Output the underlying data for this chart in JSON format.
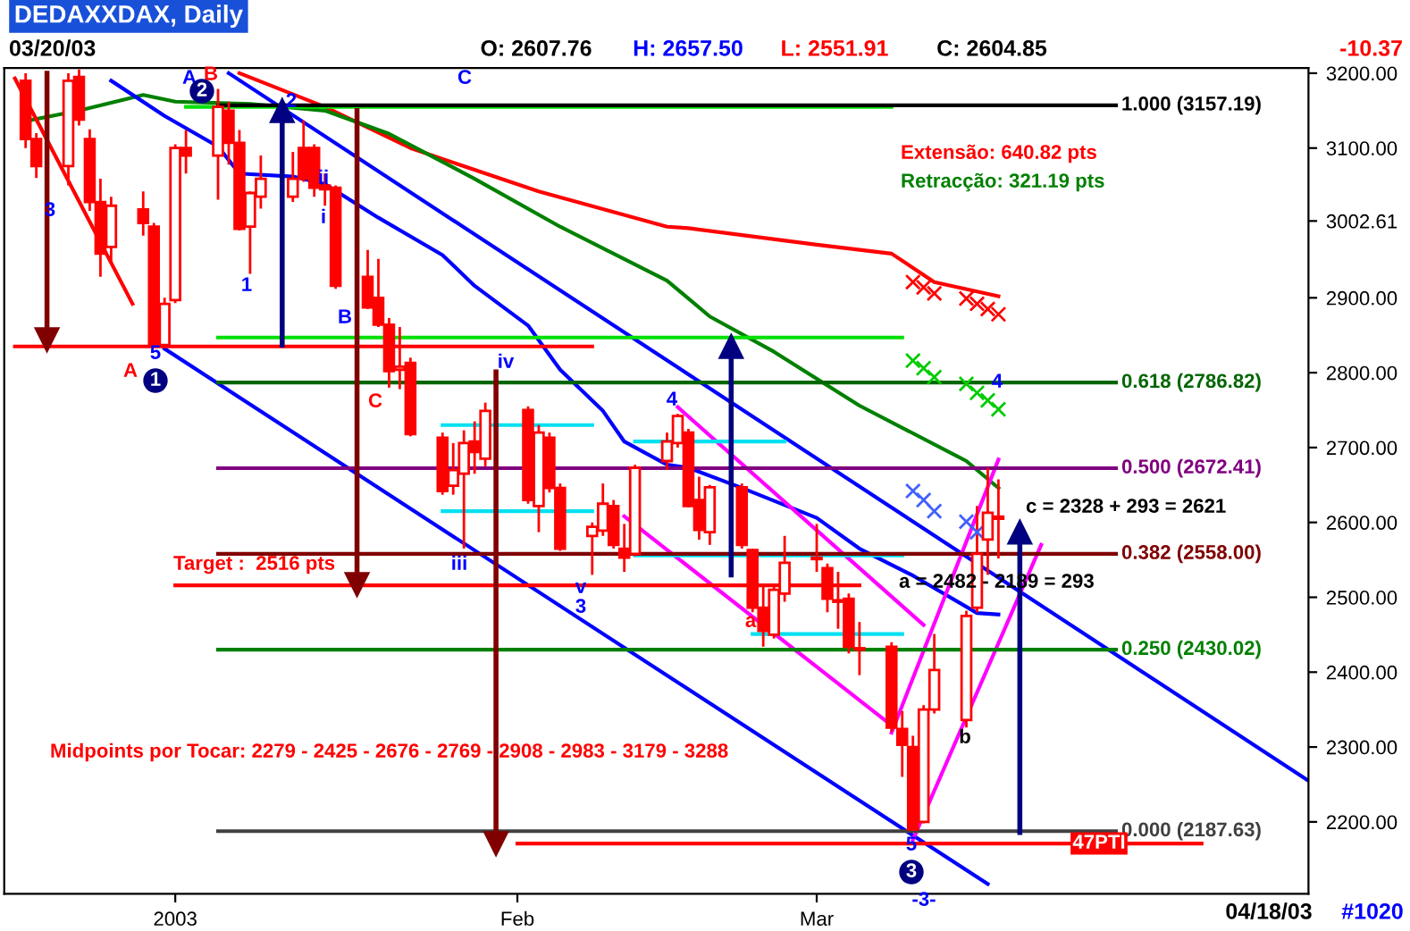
{
  "chart_data": {
    "type": "candlestick",
    "title": "DEDAXXDAX, Daily",
    "x": [
      "2002-12-19",
      "2002-12-20",
      "2002-12-23",
      "2002-12-24",
      "2002-12-25",
      "2002-12-26",
      "2002-12-27",
      "2002-12-30",
      "2002-12-31",
      "2003-01-01",
      "2003-01-02",
      "2003-01-03",
      "2003-01-06",
      "2003-01-07",
      "2003-01-08",
      "2003-01-09",
      "2003-01-10",
      "2003-01-13",
      "2003-01-14",
      "2003-01-15",
      "2003-01-16",
      "2003-01-17",
      "2003-01-20",
      "2003-01-21",
      "2003-01-22",
      "2003-01-23",
      "2003-01-24",
      "2003-01-27",
      "2003-01-28",
      "2003-01-29",
      "2003-01-30",
      "2003-01-31",
      "2003-02-04",
      "2003-02-05",
      "2003-02-06",
      "2003-02-07",
      "2003-02-10",
      "2003-02-11",
      "2003-02-12",
      "2003-02-13",
      "2003-02-14",
      "2003-02-17",
      "2003-02-18",
      "2003-02-19",
      "2003-02-20",
      "2003-02-21",
      "2003-02-24",
      "2003-02-25",
      "2003-02-26",
      "2003-02-27",
      "2003-02-28",
      "2003-03-03",
      "2003-03-04",
      "2003-03-05",
      "2003-03-06",
      "2003-03-07",
      "2003-03-10",
      "2003-03-11",
      "2003-03-12",
      "2003-03-13",
      "2003-03-14",
      "2003-03-17",
      "2003-03-18",
      "2003-03-19",
      "2003-03-20"
    ],
    "ohlc": [
      [
        3190,
        3200,
        3100,
        3112
      ],
      [
        3112,
        3120,
        3060,
        3076
      ],
      [
        3076,
        3200,
        3050,
        3190
      ],
      [
        3195,
        3205,
        3130,
        3138
      ],
      [
        3112,
        3125,
        3016,
        3028
      ],
      [
        3028,
        3059,
        2928,
        2959
      ],
      [
        2968,
        3035,
        2947,
        3023
      ],
      [
        3018,
        3042,
        2983,
        3000
      ],
      [
        2995,
        3000,
        2835,
        2837
      ],
      [
        2837,
        2900,
        2835,
        2892
      ],
      [
        2897,
        3105,
        2893,
        3100
      ],
      [
        3100,
        3124,
        3066,
        3090
      ],
      [
        3090,
        3179,
        3031,
        3155
      ],
      [
        3150,
        3162,
        3078,
        3107
      ],
      [
        3107,
        3124,
        2990,
        2992
      ],
      [
        2995,
        3042,
        2932,
        3040
      ],
      [
        3035,
        3090,
        3019,
        3059
      ],
      [
        3035,
        3095,
        3028,
        3059
      ],
      [
        3100,
        3137,
        3055,
        3059
      ],
      [
        3100,
        3105,
        3035,
        3047
      ],
      [
        3050,
        3066,
        3023,
        3045
      ],
      [
        3047,
        3050,
        2912,
        2916
      ],
      [
        2928,
        2964,
        2885,
        2887
      ],
      [
        2900,
        2952,
        2861,
        2864
      ],
      [
        2864,
        2873,
        2780,
        2802
      ],
      [
        2804,
        2861,
        2778,
        2808
      ],
      [
        2813,
        2820,
        2715,
        2718
      ],
      [
        2713,
        2720,
        2637,
        2642
      ],
      [
        2649,
        2706,
        2637,
        2670
      ],
      [
        2665,
        2723,
        2565,
        2706
      ],
      [
        2708,
        2735,
        2665,
        2694
      ],
      [
        2685,
        2760,
        2675,
        2749
      ],
      [
        2750,
        2755,
        2625,
        2630
      ],
      [
        2622,
        2730,
        2587,
        2720
      ],
      [
        2713,
        2720,
        2640,
        2646
      ],
      [
        2646,
        2652,
        2562,
        2565
      ],
      [
        2582,
        2600,
        2530,
        2594
      ],
      [
        2589,
        2652,
        2582,
        2625
      ],
      [
        2622,
        2630,
        2565,
        2570
      ],
      [
        2565,
        2598,
        2534,
        2553
      ],
      [
        2558,
        2677,
        2555,
        2673
      ],
      [
        2682,
        2720,
        2670,
        2708
      ],
      [
        2706,
        2745,
        2700,
        2742
      ],
      [
        2720,
        2725,
        2620,
        2622
      ],
      [
        2630,
        2661,
        2577,
        2590
      ],
      [
        2587,
        2650,
        2570,
        2647
      ],
      [
        2647,
        2652,
        2565,
        2570
      ],
      [
        2563,
        2565,
        2480,
        2486
      ],
      [
        2486,
        2515,
        2434,
        2455
      ],
      [
        2450,
        2515,
        2445,
        2510
      ],
      [
        2505,
        2582,
        2494,
        2546
      ],
      [
        2553,
        2598,
        2534,
        2551
      ],
      [
        2539,
        2545,
        2480,
        2498
      ],
      [
        2496,
        2534,
        2458,
        2494
      ],
      [
        2498,
        2505,
        2425,
        2434
      ],
      [
        2432,
        2467,
        2396,
        2430
      ],
      [
        2434,
        2440,
        2320,
        2326
      ],
      [
        2324,
        2348,
        2260,
        2303
      ],
      [
        2300,
        2315,
        2188,
        2190
      ],
      [
        2200,
        2356,
        2198,
        2350
      ],
      [
        2350,
        2451,
        2345,
        2403
      ],
      [
        2336,
        2482,
        2326,
        2475
      ],
      [
        2486,
        2622,
        2480,
        2558
      ],
      [
        2577,
        2673,
        2530,
        2613
      ],
      [
        2607.76,
        2657.5,
        2551.91,
        2604.85
      ]
    ],
    "series": [
      {
        "type": "line",
        "color": "#ff0000",
        "x": [
          "2003-01-08",
          "2003-01-16",
          "2003-01-24",
          "2003-02-05",
          "2003-02-17",
          "2003-02-19",
          "2003-03-03",
          "2003-03-10",
          "2003-03-14",
          "2003-03-20"
        ],
        "values": [
          3200,
          3155,
          3100,
          3042,
          2995,
          2993,
          2971,
          2959,
          2921,
          2902
        ]
      },
      {
        "type": "line",
        "color": "#008000",
        "x": [
          "2002-12-19",
          "2002-12-24",
          "2002-12-30",
          "2003-01-02",
          "2003-01-09",
          "2003-01-16",
          "2003-01-22",
          "2003-01-30",
          "2003-02-07",
          "2003-02-17",
          "2003-02-21",
          "2003-02-27",
          "2003-03-07",
          "2003-03-17",
          "2003-03-20"
        ],
        "values": [
          3136,
          3150,
          3171,
          3162,
          3159,
          3150,
          3119,
          3059,
          2995,
          2923,
          2875,
          2828,
          2756,
          2682,
          2646
        ]
      },
      {
        "type": "line",
        "color": "#0000ff",
        "x": [
          "2002-12-27",
          "2003-01-01",
          "2003-01-06",
          "2003-01-08",
          "2003-01-13",
          "2003-01-16",
          "2003-01-21",
          "2003-01-27",
          "2003-01-30",
          "2003-02-04",
          "2003-02-07",
          "2003-02-11",
          "2003-02-13",
          "2003-02-17",
          "2003-02-19",
          "2003-02-24",
          "2003-03-03",
          "2003-03-07",
          "2003-03-12",
          "2003-03-18",
          "2003-03-20"
        ],
        "values": [
          3190,
          3143,
          3102,
          3066,
          3062,
          3052,
          3007,
          2957,
          2916,
          2863,
          2804,
          2749,
          2708,
          2677,
          2673,
          2646,
          2606,
          2565,
          2529,
          2479,
          2477
        ]
      },
      {
        "type": "line",
        "color": "#0000ff",
        "x": [
          "2003-01-07",
          "2003-04-18"
        ],
        "values": [
          3200,
          2255
        ]
      },
      {
        "type": "line",
        "color": "#0000ff",
        "x": [
          "2003-01-01",
          "2003-03-19"
        ],
        "values": [
          2832,
          2117
        ]
      },
      {
        "type": "line",
        "color": "#ff0000",
        "x": [
          "2002-12-18",
          "2002-12-29"
        ],
        "values": [
          3193,
          2892
        ]
      },
      {
        "type": "line",
        "color": "#ff00ff",
        "x": [
          "2003-02-18",
          "2003-03-13"
        ],
        "values": [
          2754,
          2463
        ]
      },
      {
        "type": "line",
        "color": "#ff00ff",
        "x": [
          "2003-02-13",
          "2003-03-10"
        ],
        "values": [
          2608,
          2329
        ]
      },
      {
        "type": "line",
        "color": "#ff00ff",
        "x": [
          "2003-03-10",
          "2003-03-20"
        ],
        "values": [
          2319,
          2684
        ]
      },
      {
        "type": "line",
        "color": "#ff00ff",
        "x": [
          "2003-03-12",
          "2003-03-24"
        ],
        "values": [
          2176,
          2570
        ]
      },
      {
        "type": "line",
        "color": "#00e000",
        "x": [
          "2003-01-03",
          "2003-03-10"
        ],
        "values": [
          3155,
          3155
        ]
      },
      {
        "type": "line",
        "color": "#00e000",
        "x": [
          "2003-01-06",
          "2003-03-11"
        ],
        "values": [
          2847,
          2847
        ]
      },
      {
        "type": "line",
        "color": "#ff0000",
        "x": [
          "2002-12-18",
          "2003-02-10"
        ],
        "values": [
          2835,
          2835
        ]
      },
      {
        "type": "line",
        "color": "#ff0000",
        "x": [
          "2003-01-02",
          "2003-03-07"
        ],
        "values": [
          2516,
          2516
        ]
      },
      {
        "type": "line",
        "color": "#ff0000",
        "x": [
          "2003-02-03",
          "2003-04-08"
        ],
        "values": [
          2171,
          2171
        ]
      },
      {
        "type": "line",
        "color": "#00e0f0",
        "x": [
          "2003-01-27",
          "2003-02-10"
        ],
        "values": [
          2730,
          2730
        ]
      },
      {
        "type": "line",
        "color": "#00e0f0",
        "x": [
          "2003-01-27",
          "2003-02-10"
        ],
        "values": [
          2615,
          2615
        ]
      },
      {
        "type": "line",
        "color": "#00e0f0",
        "x": [
          "2003-02-14",
          "2003-02-28"
        ],
        "values": [
          2708,
          2708
        ]
      },
      {
        "type": "line",
        "color": "#00e0f0",
        "x": [
          "2003-02-14",
          "2003-03-11"
        ],
        "values": [
          2556,
          2556
        ]
      },
      {
        "type": "line",
        "color": "#00e0f0",
        "x": [
          "2003-02-25",
          "2003-03-11"
        ],
        "values": [
          2451,
          2451
        ]
      },
      {
        "type": "line",
        "name": "1.000 (3157.19)",
        "color": "#000000",
        "x": [
          "2003-01-06",
          "2003-03-31"
        ],
        "values": [
          3157.19,
          3157.19
        ]
      },
      {
        "type": "line",
        "name": "0.618 (2786.82)",
        "color": "#006600",
        "x": [
          "2003-01-06",
          "2003-03-31"
        ],
        "values": [
          2786.82,
          2786.82
        ]
      },
      {
        "type": "line",
        "name": "0.500 (2672.41)",
        "color": "#800080",
        "x": [
          "2003-01-06",
          "2003-03-31"
        ],
        "values": [
          2672.41,
          2672.41
        ]
      },
      {
        "type": "line",
        "name": "0.382 (2558.00)",
        "color": "#800000",
        "x": [
          "2003-01-06",
          "2003-03-31"
        ],
        "values": [
          2558.0,
          2558.0
        ]
      },
      {
        "type": "line",
        "name": "0.250 (2430.02)",
        "color": "#008000",
        "x": [
          "2003-01-06",
          "2003-03-31"
        ],
        "values": [
          2430.02,
          2430.02
        ]
      },
      {
        "type": "line",
        "name": "0.000 (2187.63)",
        "color": "#404040",
        "x": [
          "2003-01-06",
          "2003-03-31"
        ],
        "values": [
          2187.63,
          2187.63
        ]
      },
      {
        "type": "line",
        "marker": "triangle",
        "color": "#800000",
        "x": [
          "2002-12-21",
          "2002-12-21"
        ],
        "values": [
          3200,
          2844
        ]
      },
      {
        "type": "line",
        "marker": "triangle",
        "color": "#000080",
        "x": [
          "2003-01-12",
          "2003-01-12"
        ],
        "values": [
          2837,
          3150
        ]
      },
      {
        "type": "line",
        "marker": "triangle",
        "color": "#800000",
        "x": [
          "2003-01-19",
          "2003-01-19"
        ],
        "values": [
          3150,
          2517
        ]
      },
      {
        "type": "line",
        "marker": "triangle",
        "color": "#800000",
        "x": [
          "2003-02-01",
          "2003-02-01"
        ],
        "values": [
          2801,
          2171
        ]
      },
      {
        "type": "line",
        "marker": "triangle",
        "color": "#000080",
        "x": [
          "2003-02-23",
          "2003-02-23"
        ],
        "values": [
          2530,
          2835
        ]
      },
      {
        "type": "line",
        "marker": "triangle",
        "color": "#000080",
        "x": [
          "2003-03-22",
          "2003-03-22"
        ],
        "values": [
          2186,
          2587
        ]
      },
      {
        "type": "scatter",
        "marker": "cross",
        "color": "#ff0000",
        "x": [
          "2003-03-12",
          "2003-03-13",
          "2003-03-14",
          "2003-03-17",
          "2003-03-18",
          "2003-03-19",
          "2003-03-20"
        ],
        "values": [
          2921,
          2914,
          2906,
          2899,
          2892,
          2885,
          2878
        ]
      },
      {
        "type": "scatter",
        "marker": "cross",
        "color": "#00cc00",
        "x": [
          "2003-03-12",
          "2003-03-13",
          "2003-03-14",
          "2003-03-17",
          "2003-03-18",
          "2003-03-19",
          "2003-03-20"
        ],
        "values": [
          2816,
          2806,
          2794,
          2785,
          2773,
          2763,
          2751
        ]
      },
      {
        "type": "scatter",
        "marker": "cross",
        "color": "#4060ff",
        "x": [
          "2003-03-12",
          "2003-03-13",
          "2003-03-14",
          "2003-03-17",
          "2003-03-18"
        ],
        "values": [
          2642,
          2630,
          2615,
          2601,
          2587
        ]
      }
    ],
    "xlim": [
      "2002-12-17",
      "2003-04-18"
    ],
    "xticks": [
      {
        "value": "2003-01-02",
        "label": "2003"
      },
      {
        "value": "2003-02-03",
        "label": "Feb"
      },
      {
        "value": "2003-03-03",
        "label": "Mar"
      }
    ],
    "ylim": [
      2104,
      3207
    ],
    "yticks": [
      {
        "value": 3200,
        "label": "3200.00"
      },
      {
        "value": 3100,
        "label": "3100.00"
      },
      {
        "value": 3002.61,
        "label": "3002.61"
      },
      {
        "value": 2900,
        "label": "2900.00"
      },
      {
        "value": 2800,
        "label": "2800.00"
      },
      {
        "value": 2700,
        "label": "2700.00"
      },
      {
        "value": 2600,
        "label": "2600.00"
      },
      {
        "value": 2500,
        "label": "2500.00"
      },
      {
        "value": 2400,
        "label": "2400.00"
      },
      {
        "value": 2300,
        "label": "2300.00"
      },
      {
        "value": 2200,
        "label": "2200.00"
      }
    ],
    "annotations": [
      "03/20/03",
      "O: 2607.76",
      "H: 2657.50",
      "L: 2551.91",
      "C: 2604.85",
      "-10.37",
      "04/18/03",
      "#1020",
      "3",
      "1",
      "B",
      "i",
      "ii",
      "2",
      "A",
      "5",
      "1",
      "A",
      "B",
      "2",
      "C",
      "C",
      "iv",
      "iii",
      "v",
      "3",
      "4",
      "4",
      "a",
      "b",
      "5",
      "3",
      "-3-",
      "47PTI",
      "c = 2328 + 293 = 2621",
      "a = 2482 - 2189 = 293",
      "Target :  2516 pts",
      "Midpoints por Tocar: 2279 - 2425 - 2676 - 2769 - 2908 - 2983 - 3179 - 3288",
      "Extensão: 640.82 pts",
      "Retracção: 321.19 pts"
    ]
  }
}
